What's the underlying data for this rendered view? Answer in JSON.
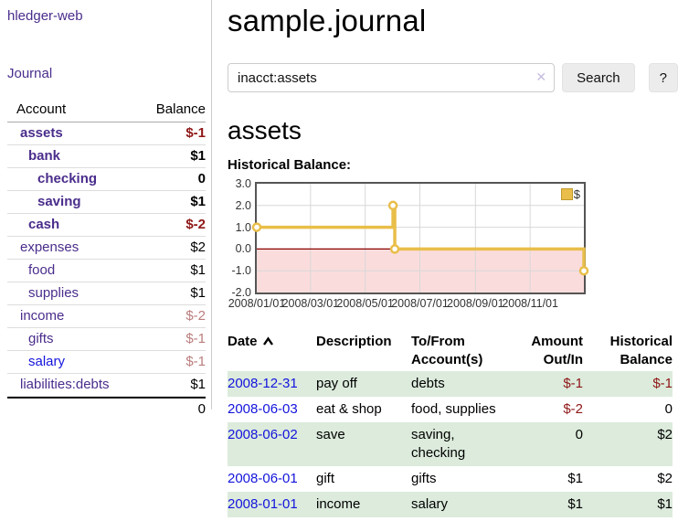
{
  "app": {
    "brand": "hledger-web",
    "nav_journal": "Journal"
  },
  "sidebar": {
    "header": {
      "account": "Account",
      "balance": "Balance"
    },
    "accounts": [
      {
        "name": "assets",
        "level": 1,
        "bold": true,
        "balance": "$-1",
        "neg": "strong"
      },
      {
        "name": "bank",
        "level": 2,
        "bold": true,
        "balance": "$1"
      },
      {
        "name": "checking",
        "level": 3,
        "bold": true,
        "balance": "0"
      },
      {
        "name": "saving",
        "level": 3,
        "bold": true,
        "balance": "$1"
      },
      {
        "name": "cash",
        "level": 2,
        "bold": true,
        "balance": "$-2",
        "neg": "strong"
      },
      {
        "name": "expenses",
        "level": 1,
        "bold": false,
        "balance": "$2"
      },
      {
        "name": "food",
        "level": 2,
        "bold": false,
        "balance": "$1"
      },
      {
        "name": "supplies",
        "level": 2,
        "bold": false,
        "balance": "$1"
      },
      {
        "name": "income",
        "level": 1,
        "bold": false,
        "balance": "$-2",
        "neg": "weak"
      },
      {
        "name": "gifts",
        "level": 2,
        "bold": false,
        "balance": "$-1",
        "neg": "weak"
      },
      {
        "name": "salary",
        "level": 2,
        "bold": false,
        "balance": "$-1",
        "neg": "weak",
        "link_blue": true
      },
      {
        "name": "liabilities:debts",
        "level": 1,
        "bold": false,
        "balance": "$1"
      }
    ],
    "total": "0"
  },
  "main": {
    "title": "sample.journal",
    "search": {
      "value": "inacct:assets",
      "clear_icon": "✕",
      "button": "Search",
      "help_button": "?"
    },
    "account_heading": "assets",
    "chart_heading": "Historical Balance:"
  },
  "chart_data": {
    "type": "line",
    "title": "Historical Balance",
    "step": "after",
    "legend": [
      {
        "label": "$",
        "color": "#e9be4a"
      }
    ],
    "x_domain_days": [
      0,
      365
    ],
    "x_ticks": [
      {
        "day": 0,
        "label": "2008/01/01"
      },
      {
        "day": 60,
        "label": "2008/03/01"
      },
      {
        "day": 121,
        "label": "2008/05/01"
      },
      {
        "day": 182,
        "label": "2008/07/01"
      },
      {
        "day": 244,
        "label": "2008/09/01"
      },
      {
        "day": 305,
        "label": "2008/11/01"
      }
    ],
    "y_ticks": [
      {
        "v": 3,
        "label": "3.0"
      },
      {
        "v": 2,
        "label": "2.0"
      },
      {
        "v": 1,
        "label": "1.0"
      },
      {
        "v": 0,
        "label": "0.0"
      },
      {
        "v": -1,
        "label": "-1.0"
      },
      {
        "v": -2,
        "label": "-2.0"
      }
    ],
    "ylim": [
      -2,
      3
    ],
    "series": [
      {
        "name": "$",
        "points": [
          {
            "date": "2008/01/01",
            "day": 0,
            "value": 1
          },
          {
            "date": "2008/06/01",
            "day": 152,
            "value": 2
          },
          {
            "date": "2008/06/03",
            "day": 154,
            "value": 0
          },
          {
            "date": "2008/12/31",
            "day": 365,
            "value": -1
          }
        ]
      }
    ],
    "line_color": "#e9be4a",
    "marker_fill": "#ffffff",
    "negative_region_color": "#fbdcdc",
    "zero_line_color": "#8b0000",
    "grid_color": "#d8d8d8"
  },
  "register": {
    "headers": {
      "date": "Date",
      "description": "Description",
      "account": "To/From Account(s)",
      "amount": "Amount Out/In",
      "balance": "Historical Balance"
    },
    "rows": [
      {
        "date": "2008-12-31",
        "description": "pay off",
        "accounts": "debts",
        "amount": "$-1",
        "balance": "$-1"
      },
      {
        "date": "2008-06-03",
        "description": "eat & shop",
        "accounts": "food, supplies",
        "amount": "$-2",
        "balance": "0"
      },
      {
        "date": "2008-06-02",
        "description": "save",
        "accounts": "saving, checking",
        "amount": "0",
        "balance": "$2"
      },
      {
        "date": "2008-06-01",
        "description": "gift",
        "accounts": "gifts",
        "amount": "$1",
        "balance": "$2"
      },
      {
        "date": "2008-01-01",
        "description": "income",
        "accounts": "salary",
        "amount": "$1",
        "balance": "$1"
      }
    ]
  }
}
